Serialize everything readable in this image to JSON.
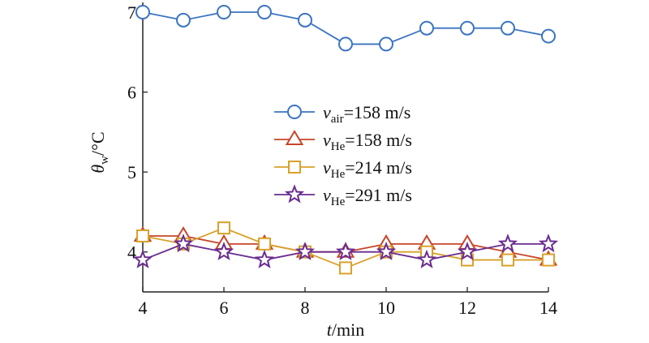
{
  "chart_data": {
    "type": "line",
    "xlabel": {
      "var": "t",
      "unit": "/min"
    },
    "ylabel": {
      "var": "θ",
      "sub": "w",
      "unit": "/°C"
    },
    "xlim": [
      4,
      14
    ],
    "ylim": [
      3.5,
      7
    ],
    "xticks": [
      4,
      6,
      8,
      10,
      12,
      14
    ],
    "yticks": [
      4,
      5,
      6,
      7
    ],
    "grid": false,
    "legend_position": "center",
    "x": [
      4,
      5,
      6,
      7,
      8,
      9,
      10,
      11,
      12,
      13,
      14
    ],
    "series": [
      {
        "name": "v_air=158 m/s",
        "label": {
          "var": "v",
          "sub": "air",
          "rest": "=158 m/s"
        },
        "marker": "circle",
        "color": "#3b74c0",
        "values": [
          7.0,
          6.9,
          7.0,
          7.0,
          6.9,
          6.6,
          6.6,
          6.8,
          6.8,
          6.8,
          6.7
        ]
      },
      {
        "name": "v_He=158 m/s",
        "label": {
          "var": "v",
          "sub": "He",
          "rest": "=158 m/s"
        },
        "marker": "triangle",
        "color": "#c8452a",
        "values": [
          4.2,
          4.2,
          4.1,
          4.1,
          4.0,
          4.0,
          4.1,
          4.1,
          4.1,
          4.0,
          3.9
        ]
      },
      {
        "name": "v_He=214 m/s",
        "label": {
          "var": "v",
          "sub": "He",
          "rest": "=214 m/s"
        },
        "marker": "square",
        "color": "#d9a12b",
        "values": [
          4.2,
          4.1,
          4.3,
          4.1,
          4.0,
          3.8,
          4.0,
          4.0,
          3.9,
          3.9,
          3.9
        ]
      },
      {
        "name": "v_He=291 m/s",
        "label": {
          "var": "v",
          "sub": "He",
          "rest": "=291 m/s"
        },
        "marker": "star",
        "color": "#6a2c8f",
        "values": [
          3.9,
          4.1,
          4.0,
          3.9,
          4.0,
          4.0,
          4.0,
          3.9,
          4.0,
          4.1,
          4.1
        ]
      }
    ]
  }
}
